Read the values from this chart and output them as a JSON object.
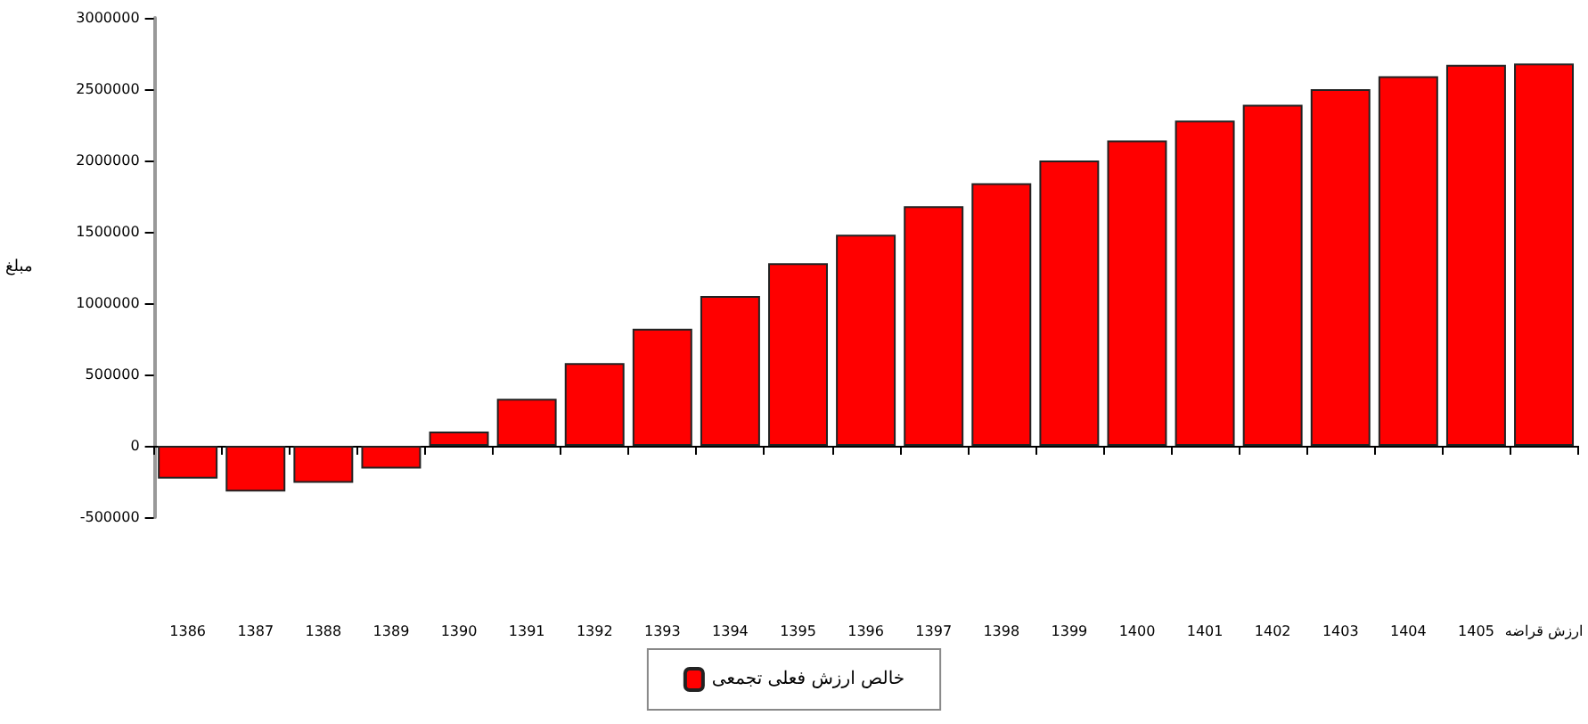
{
  "chart_data": {
    "type": "bar",
    "ylabel": "مبلغ",
    "categories": [
      "1386",
      "1387",
      "1388",
      "1389",
      "1390",
      "1391",
      "1392",
      "1393",
      "1394",
      "1395",
      "1396",
      "1397",
      "1398",
      "1399",
      "1400",
      "1401",
      "1402",
      "1403",
      "1404",
      "1405",
      "ارزش قراضه"
    ],
    "series": [
      {
        "name": "خالص ارزش فعلی تجمعی",
        "color": "#ff0000",
        "values": [
          -230000,
          -320000,
          -260000,
          -160000,
          100000,
          330000,
          580000,
          820000,
          1050000,
          1280000,
          1480000,
          1680000,
          1840000,
          2000000,
          2140000,
          2280000,
          2390000,
          2500000,
          2590000,
          2670000,
          2680000
        ]
      }
    ],
    "ylim": [
      -500000,
      3000000
    ],
    "yticks": [
      -500000,
      0,
      500000,
      1000000,
      1500000,
      2000000,
      2500000,
      3000000
    ],
    "legend": "bottom"
  }
}
